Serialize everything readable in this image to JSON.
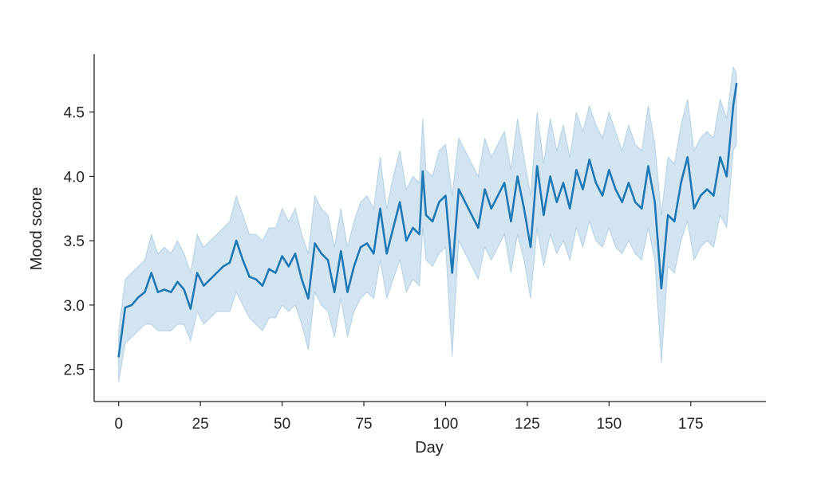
{
  "chart_data": {
    "type": "line",
    "title": "",
    "xlabel": "Day",
    "ylabel": "Mood score",
    "xlim": [
      -7.5,
      198
    ],
    "ylim": [
      2.25,
      4.95
    ],
    "xticks": [
      0,
      25,
      50,
      75,
      100,
      125,
      150,
      175
    ],
    "yticks": [
      2.5,
      3.0,
      3.5,
      4.0,
      4.5
    ],
    "ytick_labels": [
      "2.5",
      "3.0",
      "3.5",
      "4.0",
      "4.5"
    ],
    "grid": false,
    "legend": "none",
    "line_color": "#1f77b4",
    "band_color": "#1f77b4",
    "series": [
      {
        "x": [
          0,
          2,
          4,
          6,
          8,
          10,
          12,
          14,
          16,
          18,
          20,
          22,
          24,
          26,
          28,
          30,
          32,
          34,
          36,
          38,
          40,
          42,
          44,
          46,
          48,
          50,
          52,
          54,
          56,
          58,
          60,
          62,
          64,
          66,
          68,
          70,
          72,
          74,
          76,
          78,
          80,
          82,
          84,
          86,
          88,
          90,
          92,
          93,
          94,
          96,
          98,
          100,
          102,
          104,
          106,
          108,
          110,
          112,
          114,
          116,
          118,
          120,
          122,
          124,
          126,
          128,
          130,
          132,
          134,
          136,
          138,
          140,
          142,
          144,
          146,
          148,
          150,
          152,
          154,
          156,
          158,
          160,
          162,
          164,
          166,
          168,
          170,
          172,
          174,
          176,
          178,
          180,
          182,
          184,
          186,
          188,
          189
        ],
        "y": [
          2.6,
          2.98,
          3.0,
          3.06,
          3.1,
          3.25,
          3.1,
          3.12,
          3.1,
          3.18,
          3.12,
          2.97,
          3.25,
          3.15,
          3.2,
          3.25,
          3.3,
          3.33,
          3.5,
          3.35,
          3.22,
          3.2,
          3.15,
          3.28,
          3.25,
          3.38,
          3.3,
          3.4,
          3.2,
          3.05,
          3.48,
          3.4,
          3.35,
          3.1,
          3.42,
          3.1,
          3.3,
          3.45,
          3.48,
          3.4,
          3.75,
          3.4,
          3.6,
          3.8,
          3.5,
          3.6,
          3.55,
          4.04,
          3.7,
          3.65,
          3.8,
          3.85,
          3.25,
          3.9,
          3.8,
          3.7,
          3.6,
          3.9,
          3.75,
          3.85,
          3.95,
          3.65,
          4.0,
          3.75,
          3.45,
          4.08,
          3.7,
          4.0,
          3.8,
          3.95,
          3.75,
          4.05,
          3.9,
          4.13,
          3.95,
          3.85,
          4.05,
          3.9,
          3.8,
          3.95,
          3.8,
          3.75,
          4.08,
          3.8,
          3.13,
          3.7,
          3.65,
          3.95,
          4.15,
          3.75,
          3.85,
          3.9,
          3.85,
          4.15,
          4.0,
          4.55,
          4.72
        ],
        "lower": [
          2.4,
          2.7,
          2.75,
          2.8,
          2.85,
          2.85,
          2.8,
          2.8,
          2.8,
          2.85,
          2.85,
          2.72,
          2.95,
          2.85,
          2.9,
          2.95,
          2.95,
          2.95,
          3.1,
          3.0,
          2.9,
          2.85,
          2.8,
          2.9,
          2.9,
          3.0,
          2.95,
          3.0,
          2.85,
          2.65,
          3.1,
          3.0,
          2.95,
          2.75,
          3.05,
          2.75,
          2.95,
          3.05,
          3.1,
          3.05,
          3.35,
          3.05,
          3.2,
          3.35,
          3.1,
          3.2,
          3.15,
          3.6,
          3.35,
          3.3,
          3.4,
          3.45,
          2.6,
          3.5,
          3.4,
          3.3,
          3.2,
          3.45,
          3.35,
          3.45,
          3.55,
          3.25,
          3.55,
          3.35,
          3.05,
          3.6,
          3.3,
          3.55,
          3.4,
          3.5,
          3.35,
          3.6,
          3.45,
          3.65,
          3.5,
          3.45,
          3.6,
          3.45,
          3.4,
          3.5,
          3.4,
          3.35,
          3.6,
          3.35,
          2.55,
          3.3,
          3.25,
          3.5,
          3.65,
          3.35,
          3.45,
          3.5,
          3.45,
          3.7,
          3.6,
          4.2,
          4.25
        ],
        "upper": [
          2.8,
          3.2,
          3.25,
          3.3,
          3.35,
          3.55,
          3.4,
          3.45,
          3.4,
          3.5,
          3.4,
          3.25,
          3.55,
          3.45,
          3.5,
          3.55,
          3.6,
          3.65,
          3.85,
          3.7,
          3.55,
          3.55,
          3.5,
          3.6,
          3.6,
          3.75,
          3.65,
          3.75,
          3.55,
          3.4,
          3.85,
          3.75,
          3.7,
          3.45,
          3.75,
          3.45,
          3.65,
          3.8,
          3.85,
          3.75,
          4.15,
          3.75,
          4.0,
          4.2,
          3.9,
          4.0,
          3.95,
          4.45,
          4.05,
          4.0,
          4.2,
          4.25,
          3.85,
          4.3,
          4.2,
          4.1,
          4.0,
          4.3,
          4.15,
          4.25,
          4.35,
          4.05,
          4.45,
          4.15,
          3.85,
          4.5,
          4.1,
          4.45,
          4.2,
          4.4,
          4.15,
          4.5,
          4.35,
          4.55,
          4.4,
          4.3,
          4.5,
          4.35,
          4.2,
          4.4,
          4.25,
          4.2,
          4.55,
          4.25,
          3.7,
          4.15,
          4.1,
          4.4,
          4.6,
          4.2,
          4.3,
          4.35,
          4.3,
          4.6,
          4.45,
          4.85,
          4.8
        ]
      }
    ]
  }
}
